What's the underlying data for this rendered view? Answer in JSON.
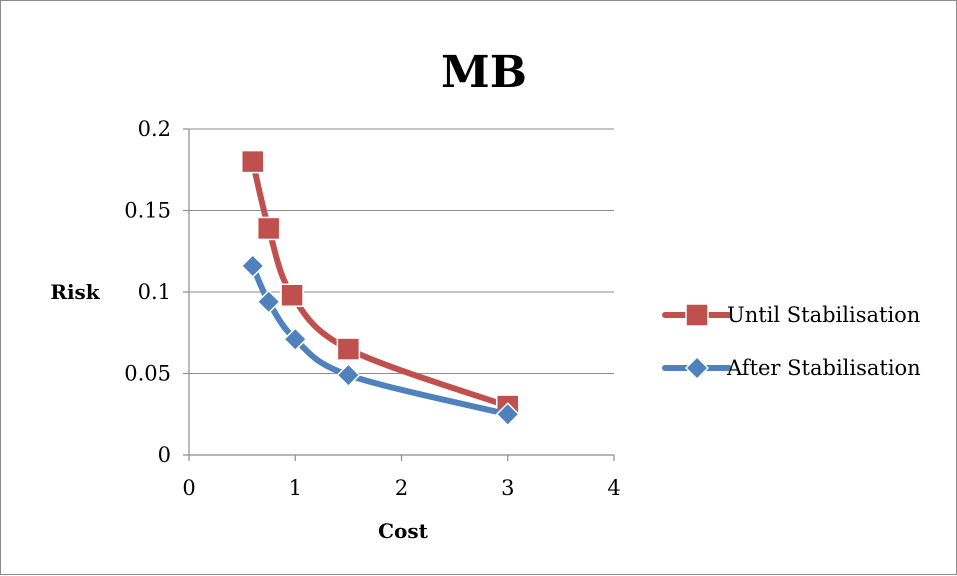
{
  "chart_data": {
    "type": "scatter",
    "title": "MB",
    "xlabel": "Cost",
    "ylabel": "Risk",
    "xlim": [
      0,
      4
    ],
    "ylim": [
      0,
      0.2
    ],
    "x_ticks": [
      "0",
      "1",
      "2",
      "3",
      "4"
    ],
    "y_ticks": [
      "0",
      "0.05",
      "0.1",
      "0.15",
      "0.2"
    ],
    "grid": "horizontal",
    "legend_position": "right",
    "smooth_lines": true,
    "series": [
      {
        "name": "Until Stabilisation",
        "color": "#c0504d",
        "marker": "square",
        "x": [
          0.6,
          0.75,
          0.97,
          1.5,
          3.0
        ],
        "y": [
          0.18,
          0.139,
          0.098,
          0.065,
          0.03
        ]
      },
      {
        "name": "After Stabilisation",
        "color": "#4f81bd",
        "marker": "diamond",
        "x": [
          0.6,
          0.75,
          1.0,
          1.5,
          3.0
        ],
        "y": [
          0.116,
          0.094,
          0.071,
          0.049,
          0.025
        ]
      }
    ]
  }
}
